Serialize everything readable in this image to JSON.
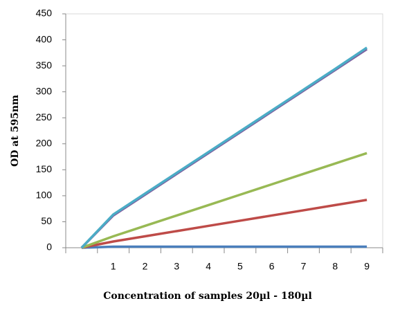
{
  "chart_data": {
    "type": "line",
    "xlabel": "Concentration of samples 20µl - 180µl",
    "ylabel": "OD at 595nm",
    "categories": [
      null,
      "1",
      "2",
      "3",
      "4",
      "5",
      "6",
      "7",
      "8",
      "9"
    ],
    "series": [
      {
        "color": "#4a7ebb",
        "values": [
          0,
          2,
          2,
          2,
          2,
          2,
          2,
          2,
          2,
          2
        ]
      },
      {
        "color": "#be4b48",
        "values": [
          0,
          12,
          22,
          32,
          42,
          52,
          62,
          72,
          82,
          92
        ]
      },
      {
        "color": "#98b954",
        "values": [
          0,
          22,
          42,
          62,
          82,
          102,
          122,
          142,
          162,
          182
        ]
      },
      {
        "color": "#7d60a0",
        "values": [
          0,
          62,
          102,
          142,
          182,
          222,
          262,
          302,
          342,
          382
        ]
      },
      {
        "color": "#4bacc6",
        "values": [
          0,
          64,
          104,
          144,
          184,
          224,
          264,
          304,
          344,
          385
        ]
      }
    ],
    "ylim": [
      0,
      450
    ],
    "yticks": [
      0,
      50,
      100,
      150,
      200,
      250,
      300,
      350,
      400,
      450
    ]
  }
}
